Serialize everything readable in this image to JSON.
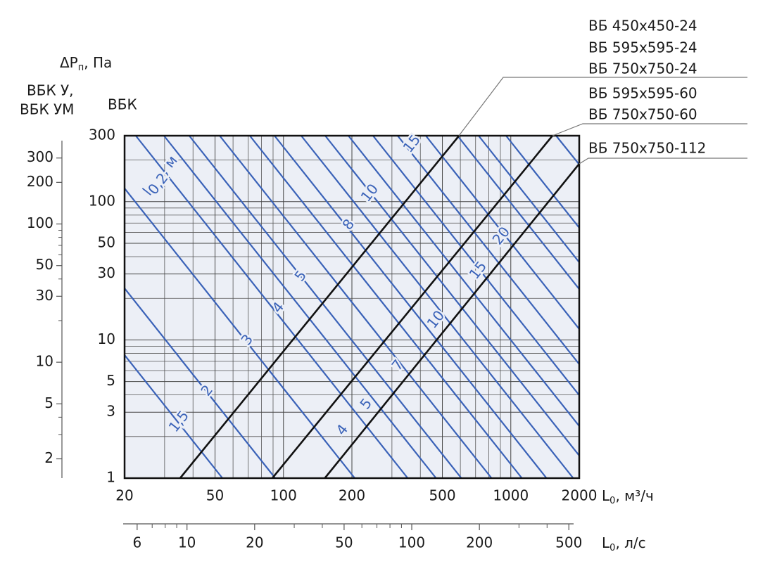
{
  "chart_data": {
    "type": "line",
    "y_label": [
      "ΔP",
      "п",
      ", Па"
    ],
    "y2_header": [
      "ВБК У,",
      "ВБК УМ"
    ],
    "y_header": "ВБК",
    "x_label": [
      "L",
      "0",
      ", м³/ч"
    ],
    "x2_label": [
      "L",
      "0",
      ", л/с"
    ],
    "throw_label": [
      "l",
      "0,2",
      ", м"
    ],
    "log_x": true,
    "log_y": true,
    "grid": true,
    "plot_color": "#eceff6",
    "xlim": [
      20,
      2000
    ],
    "xticks": [
      20,
      50,
      100,
      200,
      500,
      1000,
      2000
    ],
    "xminor": [
      30,
      40,
      60,
      70,
      80,
      90,
      300,
      400,
      600,
      700,
      800,
      900
    ],
    "ylim": [
      1,
      300
    ],
    "yticks": [
      1,
      3,
      5,
      10,
      30,
      50,
      100,
      300
    ],
    "yminor": [
      2,
      4,
      6,
      7,
      8,
      9,
      20,
      40,
      60,
      70,
      80,
      90,
      200
    ],
    "y2lim": [
      1.45,
      435
    ],
    "y2ticks": [
      2,
      5,
      10,
      30,
      50,
      100,
      200,
      300
    ],
    "y2minor": [
      3,
      4,
      20,
      40,
      60,
      70,
      80,
      90
    ],
    "x2lim": [
      5.2,
      525
    ],
    "x2ticks": [
      6,
      10,
      20,
      50,
      100,
      200,
      500
    ],
    "x2minor": [
      7,
      8,
      9,
      30,
      40,
      60,
      70,
      80,
      90,
      300,
      400
    ],
    "series": [
      {
        "labels": [
          "ВБ 450x450-24",
          "ВБ 595x595-24",
          "ВБ 750x750-24"
        ],
        "color": "#111111",
        "x": [
          35.1,
          592
        ],
        "values": [
          1,
          300
        ]
      },
      {
        "labels": [
          "ВБ 595x595-60",
          "ВБ 750x750-60"
        ],
        "color": "#111111",
        "x": [
          89.3,
          1525
        ],
        "values": [
          1,
          300
        ]
      },
      {
        "labels": [
          "ВБ 750x750-112"
        ],
        "color": "#111111",
        "x": [
          152,
          2000
        ],
        "values": [
          1,
          188
        ]
      }
    ],
    "throw_color": "#3a62b8",
    "throw_lines": [
      {
        "x": [
          20,
          53.9
        ],
        "values": [
          7.77,
          1
        ]
      },
      {
        "x": [
          20,
          92.0
        ],
        "values": [
          23.6,
          1
        ]
      },
      {
        "x": [
          20,
          205.9
        ],
        "values": [
          124.7,
          1
        ]
      },
      {
        "x": [
          22.4,
          352
        ],
        "values": [
          300,
          1
        ]
      },
      {
        "x": [
          29.8,
          469
        ],
        "values": [
          300,
          1
        ]
      },
      {
        "x": [
          38.5,
          606
        ],
        "values": [
          300,
          1
        ]
      },
      {
        "x": [
          52.4,
          823
        ],
        "values": [
          300,
          1
        ]
      },
      {
        "x": [
          71.1,
          1119
        ],
        "values": [
          300,
          1
        ]
      },
      {
        "x": [
          91.3,
          1436
        ],
        "values": [
          300,
          1
        ]
      },
      {
        "x": [
          119.7,
          1882
        ],
        "values": [
          300,
          1
        ]
      },
      {
        "x": [
          152.6,
          2000
        ],
        "values": [
          300,
          1.455
        ]
      },
      {
        "x": [
          193,
          2000
        ],
        "values": [
          300,
          2.38
        ]
      },
      {
        "x": [
          247.7,
          2000
        ],
        "values": [
          300,
          3.98
        ]
      },
      {
        "x": [
          317.8,
          2000
        ],
        "values": [
          300,
          6.67
        ]
      },
      {
        "x": [
          422.8,
          2000
        ],
        "values": [
          300,
          11.98
        ]
      },
      {
        "x": [
          582.6,
          2000
        ],
        "values": [
          300,
          23.3
        ]
      },
      {
        "x": [
          721.6,
          2000
        ],
        "values": [
          300,
          36.4
        ]
      },
      {
        "x": [
          952.8,
          2000
        ],
        "values": [
          300,
          64.7
        ]
      },
      {
        "x": [
          1582,
          2000
        ],
        "values": [
          300,
          185.7
        ]
      }
    ],
    "throw_labels_a": [
      "1,5",
      "2",
      "3",
      "4",
      "5",
      "8",
      "10",
      "15"
    ],
    "throw_labels_b": [
      "4",
      "5",
      "7",
      "10",
      "15",
      "20"
    ]
  }
}
